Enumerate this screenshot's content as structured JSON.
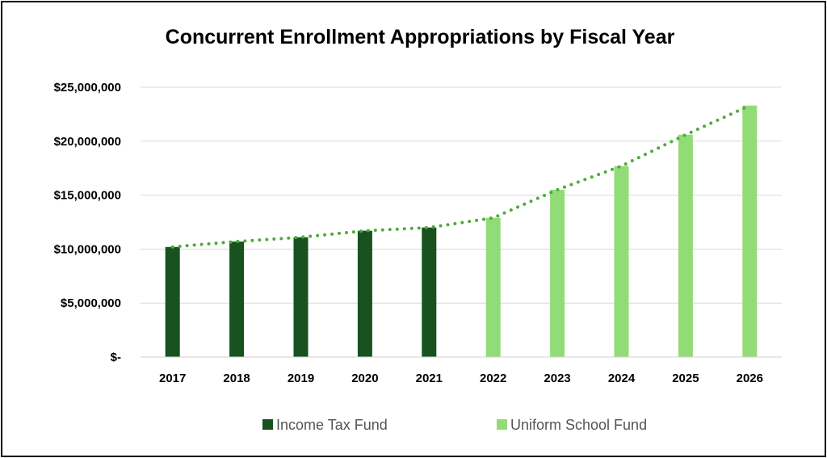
{
  "chart_data": {
    "type": "bar",
    "title": "Concurrent Enrollment Appropriations by Fiscal Year",
    "xlabel": "",
    "ylabel": "",
    "categories": [
      "2017",
      "2018",
      "2019",
      "2020",
      "2021",
      "2022",
      "2023",
      "2024",
      "2025",
      "2026"
    ],
    "series": [
      {
        "name": "Income Tax Fund",
        "color": "#17521f",
        "values": [
          10200000,
          10700000,
          11100000,
          11700000,
          12000000,
          null,
          null,
          null,
          null,
          null
        ]
      },
      {
        "name": "Uniform School Fund",
        "color": "#92dc77",
        "values": [
          null,
          null,
          null,
          null,
          null,
          12900000,
          15500000,
          17700000,
          20600000,
          23300000
        ]
      }
    ],
    "trendline": {
      "style": "dotted",
      "color": "#4faa3a",
      "values": [
        10200000,
        10700000,
        11100000,
        11700000,
        12000000,
        12900000,
        15500000,
        17700000,
        20600000,
        23300000
      ]
    },
    "ylim": [
      0,
      25000000
    ],
    "yticks": [
      0,
      5000000,
      10000000,
      15000000,
      20000000,
      25000000
    ],
    "ytick_labels": [
      "$-",
      "$5,000,000",
      "$10,000,000",
      "$15,000,000",
      "$20,000,000",
      "$25,000,000"
    ],
    "grid": true,
    "legend_position": "bottom"
  }
}
